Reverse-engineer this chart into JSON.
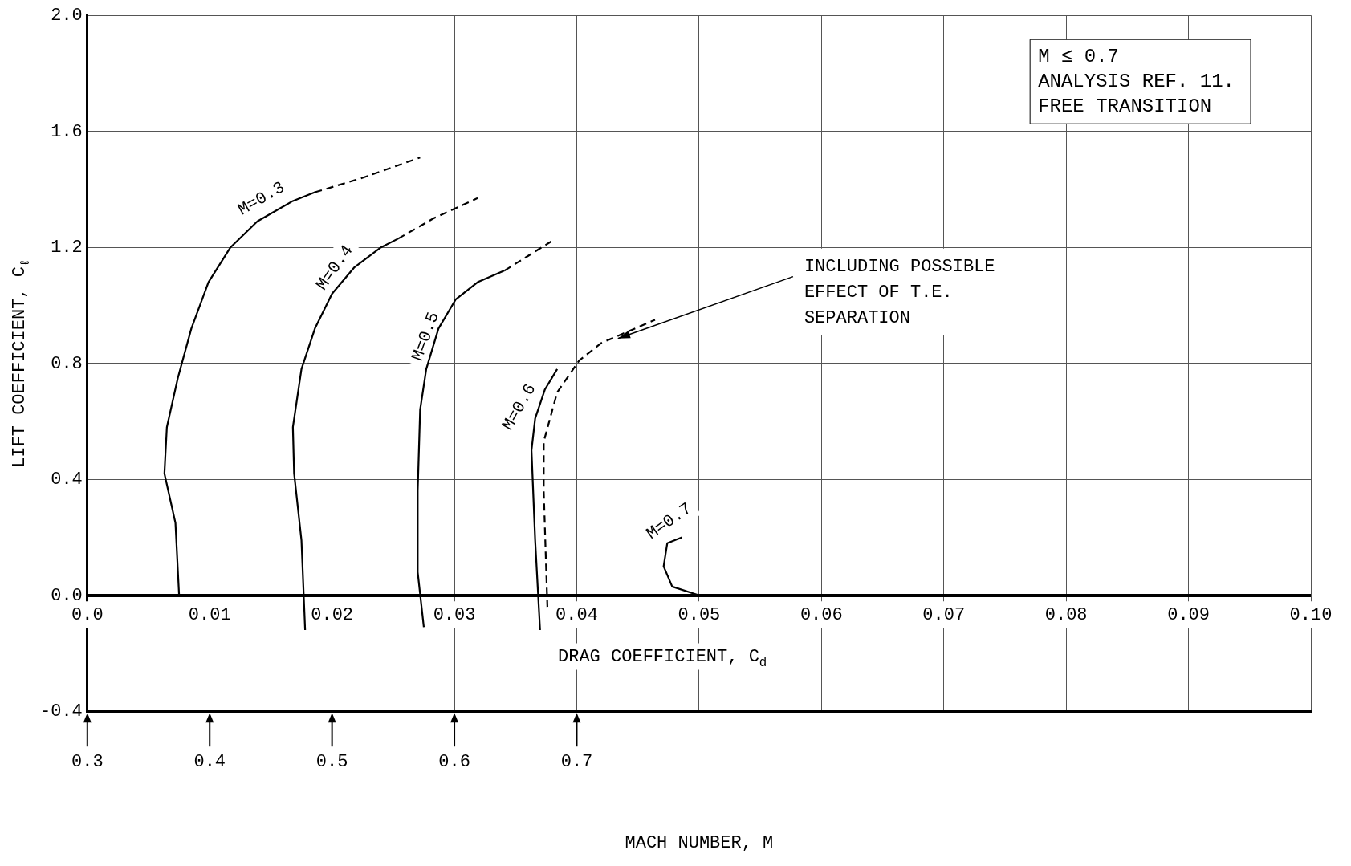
{
  "chart_data": {
    "type": "line",
    "xlabel": "DRAG COEFFICIENT, C$_{d}$",
    "ylabel": "LIFT COEFFICIENT, C$_{ℓ}$",
    "x2label": "MACH NUMBER, M",
    "xlim": [
      0,
      0.1
    ],
    "xticks": [
      {
        "value": 0,
        "label": "0.0"
      },
      0.01,
      0.02,
      0.03,
      0.04,
      0.05,
      0.06,
      0.07,
      0.08,
      0.09,
      {
        "value": 0.1,
        "label": "0.10"
      }
    ],
    "x2lim": [
      0.3,
      1.3
    ],
    "x2ticks": [
      0.3,
      0.4,
      0.5,
      0.6,
      0.7
    ],
    "ylim": [
      -0.4,
      2.0
    ],
    "yticks": [
      {
        "value": -0.4,
        "label": "-0.4"
      },
      {
        "value": 0,
        "label": "0.0"
      },
      0.4,
      0.8,
      1.2,
      1.6,
      {
        "value": 2,
        "label": "2.0"
      }
    ],
    "grid": true,
    "legend": false,
    "series": [
      {
        "color": "#000000",
        "line_style": "solid",
        "x": [
          0.0075,
          0.0072,
          0.0063,
          0.0065,
          0.0074,
          0.0085,
          0.0099,
          0.0117,
          0.0139,
          0.0168,
          0.0186
        ],
        "values": [
          0,
          0.25,
          0.42,
          0.58,
          0.75,
          0.92,
          1.08,
          1.2,
          1.29,
          1.36,
          1.39
        ]
      },
      {
        "color": "#000000",
        "line_style": "dashed",
        "x": [
          0.0186,
          0.0225,
          0.0272
        ],
        "values": [
          1.39,
          1.44,
          1.51
        ]
      },
      {
        "color": "#000000",
        "line_style": "solid",
        "x": [
          0.0178,
          0.0175,
          0.0169,
          0.0168,
          0.0175,
          0.0186,
          0.02,
          0.0218,
          0.024,
          0.0254
        ],
        "values": [
          -0.12,
          0.19,
          0.42,
          0.58,
          0.78,
          0.92,
          1.04,
          1.13,
          1.2,
          1.23
        ]
      },
      {
        "color": "#000000",
        "line_style": "dashed",
        "x": [
          0.0254,
          0.0283,
          0.0319
        ],
        "values": [
          1.23,
          1.3,
          1.37
        ]
      },
      {
        "color": "#000000",
        "line_style": "solid",
        "x": [
          0.0275,
          0.027,
          0.027,
          0.0272,
          0.0277,
          0.0287,
          0.0301,
          0.0319,
          0.0341
        ],
        "values": [
          -0.11,
          0.08,
          0.36,
          0.64,
          0.78,
          0.92,
          1.02,
          1.08,
          1.12
        ]
      },
      {
        "color": "#000000",
        "line_style": "dashed",
        "x": [
          0.0341,
          0.0379
        ],
        "values": [
          1.12,
          1.22
        ]
      },
      {
        "color": "#000000",
        "line_style": "solid",
        "x": [
          0.037,
          0.0366,
          0.0363,
          0.0366,
          0.0374,
          0.0384
        ],
        "values": [
          -0.12,
          0.19,
          0.5,
          0.61,
          0.71,
          0.78
        ]
      },
      {
        "color": "#000000",
        "line_style": "dashed",
        "x": [
          0.0376,
          0.0373,
          0.0373,
          0.0384,
          0.0402,
          0.042,
          0.0442,
          0.0464
        ],
        "values": [
          -0.04,
          0.36,
          0.53,
          0.7,
          0.81,
          0.87,
          0.91,
          0.95
        ]
      },
      {
        "color": "#000000",
        "line_style": "solid",
        "x": [
          0.05,
          0.0478,
          0.0471,
          0.0474,
          0.0486
        ],
        "values": [
          0,
          0.03,
          0.1,
          0.18,
          0.2
        ]
      }
    ],
    "annotations": [
      {
        "text": "M=0.3",
        "x": 0.0139,
        "y": 1.29
      },
      {
        "text": "M=0.4",
        "x": 0.0218,
        "y": 1.13
      },
      {
        "text": "M=0.5",
        "x": 0.0287,
        "y": 0.92
      },
      {
        "text": "M=0.6",
        "x": 0.0374,
        "y": 0.71
      },
      {
        "text": "M=0.7",
        "x": 0.0486,
        "y": 0.2
      },
      {
        "text": "INCLUDING POSSIBLE EFFECT OF T.E. SEPARATION",
        "x": 0.0431,
        "y": 0.88
      },
      "M ≤ 0.7",
      "ANALYSIS REF. 11.",
      "FREE TRANSITION"
    ]
  }
}
